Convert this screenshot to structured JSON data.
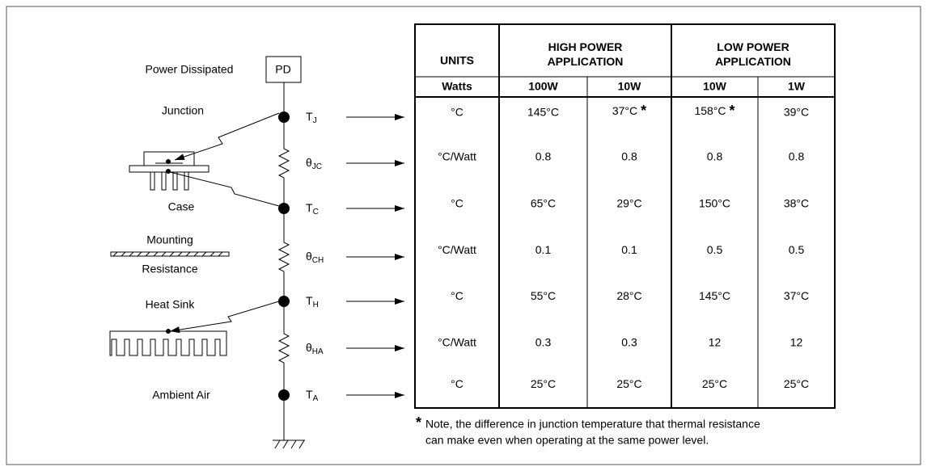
{
  "left_labels": {
    "power_dissipated": "Power Dissipated",
    "pd": "PD",
    "junction": "Junction",
    "case": "Case",
    "mounting": "Mounting",
    "resistance": "Resistance",
    "heat_sink": "Heat Sink",
    "ambient_air": "Ambient Air"
  },
  "nodes": [
    {
      "main": "T",
      "sub": "J"
    },
    {
      "main": "θ",
      "sub": "JC"
    },
    {
      "main": "T",
      "sub": "C"
    },
    {
      "main": "θ",
      "sub": "CH"
    },
    {
      "main": "T",
      "sub": "H"
    },
    {
      "main": "θ",
      "sub": "HA"
    },
    {
      "main": "T",
      "sub": "A"
    }
  ],
  "table": {
    "header": [
      "UNITS",
      "HIGH POWER APPLICATION",
      "LOW POWER APPLICATION"
    ],
    "subheader": [
      "Watts",
      "100W",
      "10W",
      "10W",
      "1W"
    ],
    "rows": [
      [
        "°C",
        "145°C",
        {
          "text": "37°C",
          "mark": "*"
        },
        {
          "text": "158°C",
          "mark": "*"
        },
        "39°C"
      ],
      [
        "°C/Watt",
        "0.8",
        "0.8",
        "0.8",
        "0.8"
      ],
      [
        "°C",
        "65°C",
        "29°C",
        "150°C",
        "38°C"
      ],
      [
        "°C/Watt",
        "0.1",
        "0.1",
        "0.5",
        "0.5"
      ],
      [
        "°C",
        "55°C",
        "28°C",
        "145°C",
        "37°C"
      ],
      [
        "°C/Watt",
        "0.3",
        "0.3",
        "12",
        "12"
      ],
      [
        "°C",
        "25°C",
        "25°C",
        "25°C",
        "25°C"
      ]
    ]
  },
  "note": {
    "marker": "*",
    "lines": [
      "Note, the difference in junction temperature that thermal resistance",
      "can make even when operating at the same power level."
    ]
  }
}
